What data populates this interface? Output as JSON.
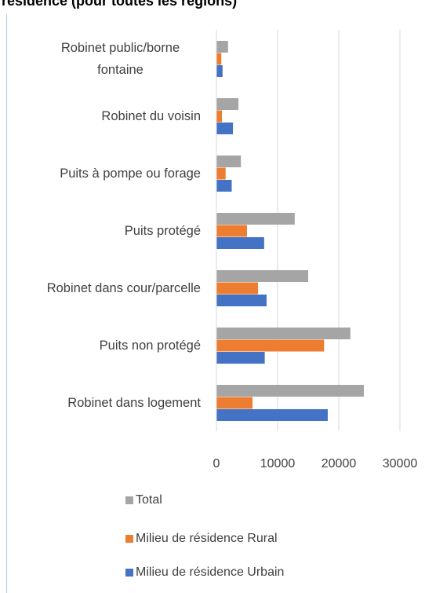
{
  "chart_data": {
    "type": "bar",
    "orientation": "horizontal",
    "title": "résidence (pour toutes les régions)",
    "categories": [
      "Robinet public/borne fontaine",
      "Robinet du voisin",
      "Puits à pompe ou forage",
      "Puits protégé",
      "Robinet dans cour/parcelle",
      "Puits non protégé",
      "Robinet dans logement"
    ],
    "series": [
      {
        "name": "Total",
        "color": "#a5a5a5",
        "values": [
          1900,
          3600,
          4000,
          12800,
          15000,
          21900,
          24100
        ]
      },
      {
        "name": "Milieu de résidence Rural",
        "color": "#ed7d31",
        "values": [
          800,
          900,
          1500,
          5000,
          6800,
          17600,
          5900
        ]
      },
      {
        "name": "Milieu de résidence Urbain",
        "color": "#4472c4",
        "values": [
          1000,
          2700,
          2500,
          7800,
          8200,
          7900,
          18200
        ]
      }
    ],
    "xlim": [
      0,
      30000
    ],
    "xticks": [
      0,
      10000,
      20000,
      30000
    ],
    "grid": true,
    "legend": "bottom"
  }
}
